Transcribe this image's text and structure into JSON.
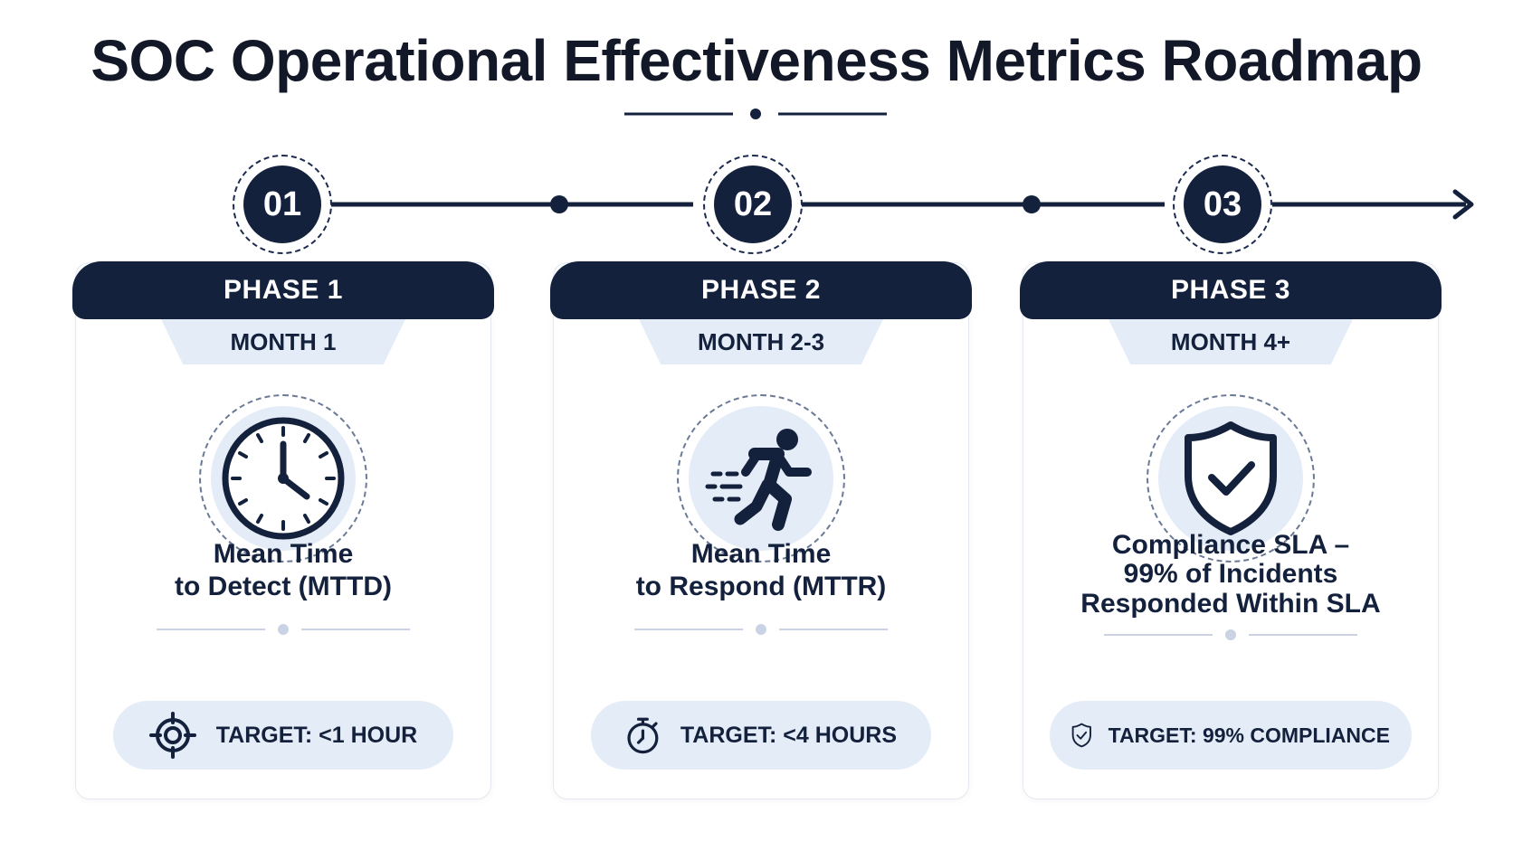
{
  "title": "SOC Operational Effectiveness Metrics Roadmap",
  "colors": {
    "navy": "#14213d",
    "light_blue": "#e4ecf7",
    "border": "#e3e8f0"
  },
  "phases": [
    {
      "step": "01",
      "phase": "PHASE 1",
      "month": "MONTH 1",
      "icon": "clock-icon",
      "metric_lines": [
        "Mean Time",
        "to Detect (MTTD)"
      ],
      "target_icon": "crosshair-icon",
      "target": "TARGET: <1 HOUR"
    },
    {
      "step": "02",
      "phase": "PHASE 2",
      "month": "MONTH 2-3",
      "icon": "running-person-icon",
      "metric_lines": [
        "Mean Time",
        "to Respond (MTTR)"
      ],
      "target_icon": "stopwatch-icon",
      "target": "TARGET: <4 HOURS"
    },
    {
      "step": "03",
      "phase": "PHASE 3",
      "month": "MONTH 4+",
      "icon": "shield-check-icon",
      "metric_lines": [
        "Compliance SLA –",
        "99% of Incidents",
        "Responded Within SLA"
      ],
      "target_icon": "shield-check-small-icon",
      "target": "TARGET: 99% COMPLIANCE"
    }
  ]
}
